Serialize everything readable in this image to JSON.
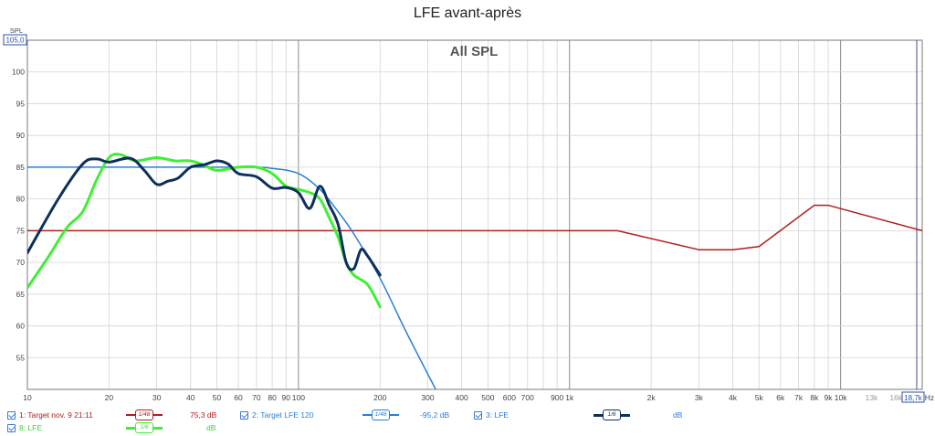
{
  "title": "LFE avant-après",
  "chart_data": {
    "type": "line",
    "title": "LFE avant-après",
    "watermark": "All SPL",
    "ylabel": "SPL",
    "y_top_label": "105,0",
    "xunit": "Hz",
    "x_end_label": "18,7k",
    "xscale": "log",
    "xlim": [
      10,
      20000
    ],
    "ylim": [
      50,
      105
    ],
    "grid": true,
    "y_ticks": [
      55,
      60,
      65,
      70,
      75,
      80,
      85,
      90,
      95,
      100
    ],
    "x_ticks": [
      {
        "v": 10,
        "label": "10"
      },
      {
        "v": 20,
        "label": "20"
      },
      {
        "v": 30,
        "label": "30"
      },
      {
        "v": 40,
        "label": "40"
      },
      {
        "v": 50,
        "label": "50"
      },
      {
        "v": 60,
        "label": "60"
      },
      {
        "v": 70,
        "label": "70"
      },
      {
        "v": 80,
        "label": "80"
      },
      {
        "v": 90,
        "label": "90"
      },
      {
        "v": 100,
        "label": "100"
      },
      {
        "v": 200,
        "label": "200"
      },
      {
        "v": 300,
        "label": "300"
      },
      {
        "v": 400,
        "label": "400"
      },
      {
        "v": 500,
        "label": "500"
      },
      {
        "v": 600,
        "label": "600"
      },
      {
        "v": 700,
        "label": "700"
      },
      {
        "v": 900,
        "label": "900"
      },
      {
        "v": 1000,
        "label": "1k"
      },
      {
        "v": 2000,
        "label": "2k"
      },
      {
        "v": 3000,
        "label": "3k"
      },
      {
        "v": 4000,
        "label": "4k"
      },
      {
        "v": 5000,
        "label": "5k"
      },
      {
        "v": 6000,
        "label": "6k"
      },
      {
        "v": 7000,
        "label": "7k"
      },
      {
        "v": 8000,
        "label": "8k"
      },
      {
        "v": 9000,
        "label": "9k"
      },
      {
        "v": 10000,
        "label": "10k"
      },
      {
        "v": 13000,
        "label": "13k"
      },
      {
        "v": 16000,
        "label": "16k"
      }
    ],
    "series": [
      {
        "name": "1: Target nov. 9 21:11",
        "color": "#b01e1e",
        "width": 1.5,
        "x": [
          10,
          1500,
          3000,
          4000,
          5000,
          8000,
          9000,
          20000
        ],
        "y": [
          75,
          75,
          72,
          72,
          72.5,
          79,
          79,
          75
        ]
      },
      {
        "name": "2: Target LFE 120",
        "color": "#2a7fd4",
        "width": 1.5,
        "x": [
          10,
          60,
          80,
          100,
          120,
          140,
          160,
          200,
          250,
          330
        ],
        "y": [
          85,
          85,
          84.8,
          84,
          81.5,
          78,
          74.5,
          67.5,
          59,
          49
        ]
      },
      {
        "name": "3: LFE",
        "color": "#0e2f5c",
        "width": 3,
        "x": [
          10,
          13,
          16,
          18,
          20,
          24,
          27,
          30,
          33,
          36,
          40,
          45,
          50,
          55,
          60,
          70,
          80,
          90,
          100,
          110,
          120,
          130,
          140,
          150,
          160,
          170,
          180,
          200
        ],
        "y": [
          71.5,
          80,
          85.5,
          86.3,
          85.8,
          86.4,
          84.5,
          82.3,
          82.8,
          83.3,
          85,
          85.4,
          86,
          85.5,
          84,
          83.5,
          81.7,
          81.8,
          81,
          78.5,
          82,
          79,
          76,
          70,
          69,
          72,
          71,
          68
        ]
      },
      {
        "name": "8: LFE",
        "color": "#3ef034",
        "width": 3,
        "x": [
          10,
          12,
          14,
          16,
          18,
          20,
          22,
          25,
          30,
          35,
          40,
          45,
          50,
          60,
          70,
          80,
          90,
          100,
          110,
          120,
          130,
          140,
          150,
          160,
          180,
          200
        ],
        "y": [
          66,
          71,
          75.5,
          78,
          83,
          86.5,
          87,
          86,
          86.5,
          86,
          86,
          85.3,
          84.5,
          85,
          85,
          84,
          82,
          81.5,
          81,
          80,
          77,
          74,
          70,
          68,
          66.5,
          63
        ]
      }
    ]
  },
  "legend": {
    "items": [
      {
        "name": "1: Target nov. 9 21:11",
        "color": "#b01e1e",
        "smoothing": "1/48",
        "value": "75,3 dB"
      },
      {
        "name": "2: Target LFE 120",
        "color": "#2a7fd4",
        "smoothing": "1/48",
        "value": "-95,2 dB"
      },
      {
        "name": "3: LFE",
        "color": "#0e2f5c",
        "smoothing": "1/6",
        "value": "dB"
      },
      {
        "name": "8: LFE",
        "color": "#3ef034",
        "smoothing": "1/6",
        "value": "dB"
      }
    ]
  }
}
